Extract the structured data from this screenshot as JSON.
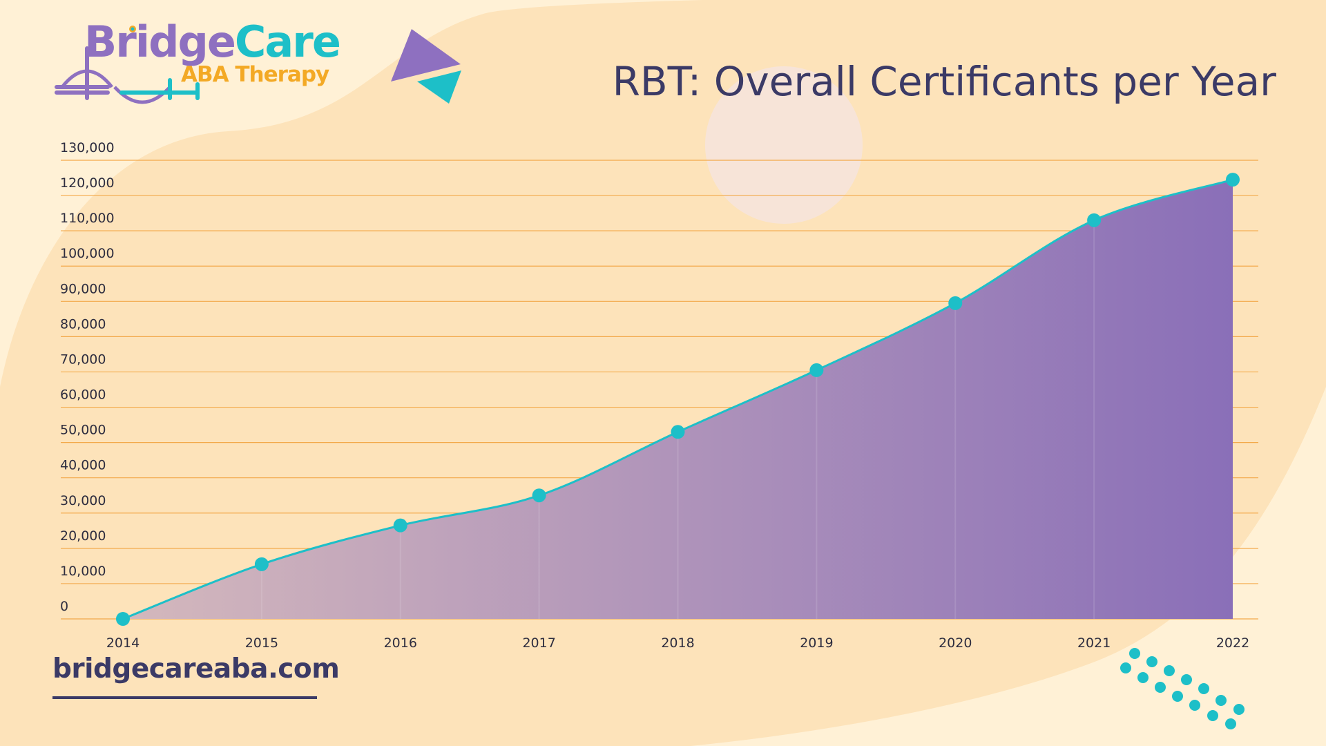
{
  "brand": {
    "name_part1": "Bridge",
    "name_part2": "Care",
    "subtitle": "ABA Therapy",
    "website": "bridgecareaba.com"
  },
  "colors": {
    "background": "#FFF1D6",
    "blob": "#FDE3BA",
    "title": "#3B3A66",
    "grid": "#F3A94A",
    "line": "#1DBFC8",
    "area_light": "#D4B8BC",
    "area_dark": "#8A6FB8",
    "brand_purple": "#8E70C0",
    "brand_teal": "#1DBFC8",
    "brand_orange": "#F3A925"
  },
  "chart_data": {
    "type": "area",
    "title": "RBT: Overall Certificants per Year",
    "x": [
      "2014",
      "2015",
      "2016",
      "2017",
      "2018",
      "2019",
      "2020",
      "2021",
      "2022"
    ],
    "values": [
      0,
      15500,
      26500,
      35000,
      53000,
      70500,
      89500,
      113000,
      124500
    ],
    "y_ticks": [
      "0",
      "10,000",
      "20,000",
      "30,000",
      "40,000",
      "50,000",
      "60,000",
      "70,000",
      "80,000",
      "90,000",
      "100,000",
      "110,000",
      "120,000",
      "130,000"
    ],
    "ylim": [
      0,
      130000
    ],
    "xlabel": "",
    "ylabel": "",
    "grid": true,
    "legend": "none"
  }
}
